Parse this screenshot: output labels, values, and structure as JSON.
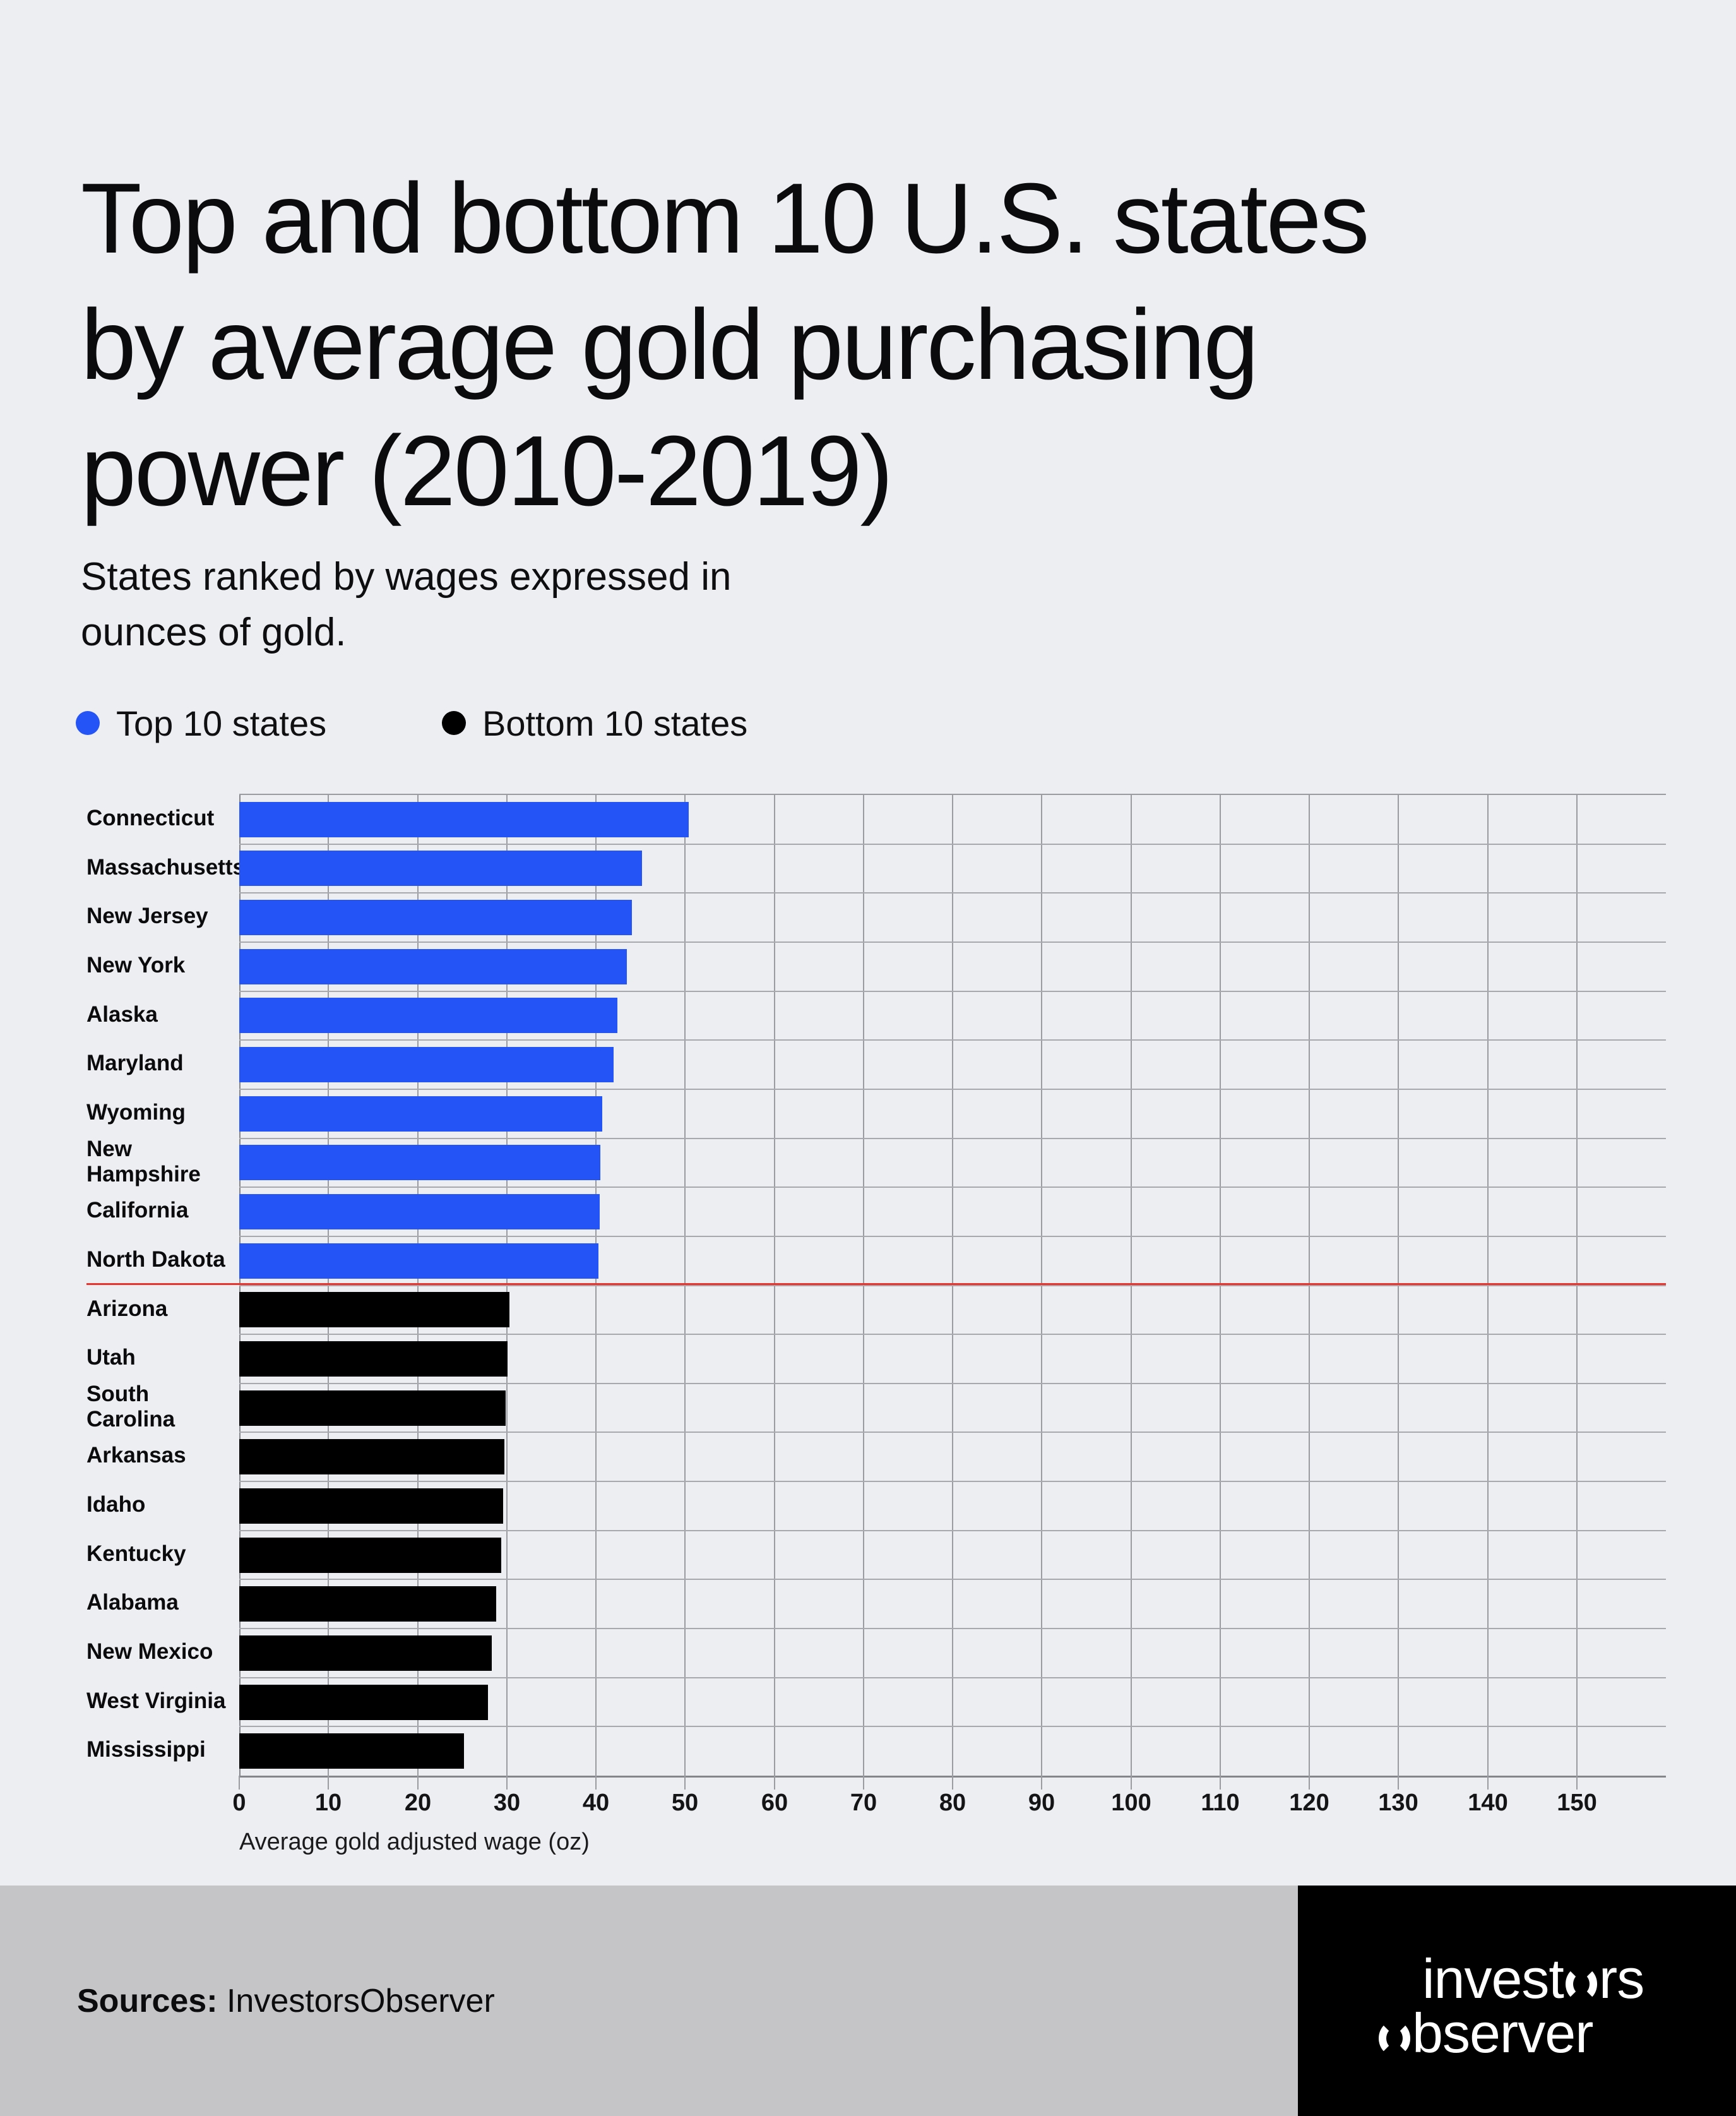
{
  "title": {
    "lines": [
      "Top and bottom 10 U.S. states",
      "by average gold purchasing",
      "power (2010-2019)"
    ]
  },
  "subtitle": {
    "lines": [
      "States ranked by wages expressed in",
      "ounces of gold."
    ]
  },
  "legend": {
    "items": [
      {
        "label": "Top 10 states",
        "color": "#2454f6"
      },
      {
        "label": "Bottom 10 states",
        "color": "#000000"
      }
    ]
  },
  "chart_data": {
    "type": "bar",
    "orientation": "horizontal",
    "title": "Top and bottom 10 U.S. states by average gold purchasing power (2010-2019)",
    "categories": [
      "Connecticut",
      "Massachusetts",
      "New Jersey",
      "New York",
      "Alaska",
      "Maryland",
      "Wyoming",
      "New\nHampshire",
      "California",
      "North Dakota",
      "Arizona",
      "Utah",
      "South Carolina",
      "Arkansas",
      "Idaho",
      "Kentucky",
      "Alabama",
      "New Mexico",
      "West Virginia",
      "Mississippi"
    ],
    "values": [
      50.4,
      45.2,
      44.0,
      43.5,
      42.4,
      42.0,
      40.7,
      40.5,
      40.4,
      40.3,
      30.3,
      30.1,
      29.9,
      29.7,
      29.6,
      29.4,
      28.8,
      28.3,
      27.9,
      25.2
    ],
    "groups": [
      {
        "name": "Top 10 states",
        "color": "#2454f6",
        "count": 10
      },
      {
        "name": "Bottom 10 states",
        "color": "#000000",
        "count": 10
      }
    ],
    "xlabel": "Average gold adjusted wage (oz)",
    "xlim": [
      0,
      160
    ],
    "xticks": [
      0,
      10,
      20,
      30,
      40,
      50,
      60,
      70,
      80,
      90,
      100,
      110,
      120,
      130,
      140,
      150
    ],
    "grid": true,
    "legend_position": "top-left",
    "divider_line": {
      "after_category": "North Dakota",
      "color": "#e8342c"
    }
  },
  "footer": {
    "sources_label": "Sources:",
    "sources_value": "InvestorsObserver",
    "logo_lines": [
      "investors",
      "observer"
    ]
  }
}
